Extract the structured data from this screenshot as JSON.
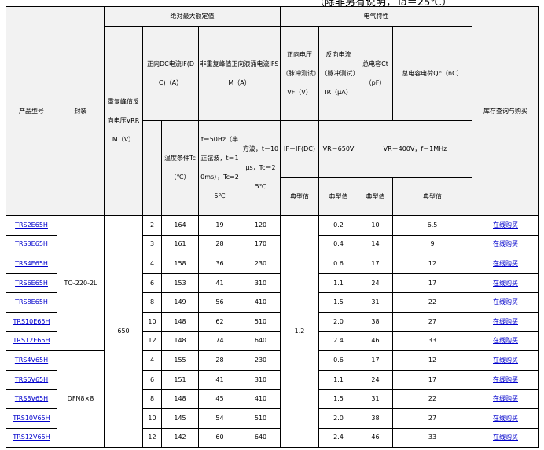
{
  "note": "（除非另有说明，Ta＝25℃）",
  "header": {
    "model": "产品型号",
    "package": "封装",
    "abs_max": "绝对最大额定值",
    "elec": "电气特性",
    "buy": "库存查询与购买",
    "vrrm": "重复峰值反向电压VRRM（V）",
    "ifdc": "正向DC电流IF(DC)（A）",
    "ifsm": "非重复峰值正向浪涌电流IFSM（A）",
    "vf": "正向电压（脉冲测试）VF（V）",
    "ir": "反向电流（脉冲测试）IR（μA）",
    "ct": "总电容Ct（pF）",
    "qc": "总电容电荷Qc（nC）",
    "tc": "温度条件Tc（℃）",
    "f50": "f＝50Hz（半正弦波，t＝10ms），Tc=25℃",
    "sq": "方波，t＝10μs，Tc＝25℃",
    "vf_cond": "IF＝IF(DC)",
    "ir_cond": "VR＝650V",
    "ct_cond": "VR＝400V，f＝1MHz",
    "typ": "典型值"
  },
  "packages": [
    "TO-220-2L",
    "DFN8×8"
  ],
  "vrrm": "650",
  "vf": "1.2",
  "link_label": "在线购买",
  "link_color": "#0000cc",
  "rows": [
    {
      "model": "TRS2E65H",
      "if": "2",
      "tc": "164",
      "f50": "19",
      "sq": "120",
      "ir": "0.2",
      "ct": "10",
      "qc": "6.5"
    },
    {
      "model": "TRS3E65H",
      "if": "3",
      "tc": "161",
      "f50": "28",
      "sq": "170",
      "ir": "0.4",
      "ct": "14",
      "qc": "9"
    },
    {
      "model": "TRS4E65H",
      "if": "4",
      "tc": "158",
      "f50": "36",
      "sq": "230",
      "ir": "0.6",
      "ct": "17",
      "qc": "12"
    },
    {
      "model": "TRS6E65H",
      "if": "6",
      "tc": "153",
      "f50": "41",
      "sq": "310",
      "ir": "1.1",
      "ct": "24",
      "qc": "17"
    },
    {
      "model": "TRS8E65H",
      "if": "8",
      "tc": "149",
      "f50": "56",
      "sq": "410",
      "ir": "1.5",
      "ct": "31",
      "qc": "22"
    },
    {
      "model": "TRS10E65H",
      "if": "10",
      "tc": "148",
      "f50": "62",
      "sq": "510",
      "ir": "2.0",
      "ct": "38",
      "qc": "27"
    },
    {
      "model": "TRS12E65H",
      "if": "12",
      "tc": "148",
      "f50": "74",
      "sq": "640",
      "ir": "2.4",
      "ct": "46",
      "qc": "33"
    },
    {
      "model": "TRS4V65H",
      "if": "4",
      "tc": "155",
      "f50": "28",
      "sq": "230",
      "ir": "0.6",
      "ct": "17",
      "qc": "12"
    },
    {
      "model": "TRS6V65H",
      "if": "6",
      "tc": "151",
      "f50": "41",
      "sq": "310",
      "ir": "1.1",
      "ct": "24",
      "qc": "17"
    },
    {
      "model": "TRS8V65H",
      "if": "8",
      "tc": "148",
      "f50": "45",
      "sq": "410",
      "ir": "1.5",
      "ct": "31",
      "qc": "22"
    },
    {
      "model": "TRS10V65H",
      "if": "10",
      "tc": "145",
      "f50": "54",
      "sq": "510",
      "ir": "2.0",
      "ct": "38",
      "qc": "27"
    },
    {
      "model": "TRS12V65H",
      "if": "12",
      "tc": "142",
      "f50": "60",
      "sq": "640",
      "ir": "2.4",
      "ct": "46",
      "qc": "33"
    }
  ]
}
